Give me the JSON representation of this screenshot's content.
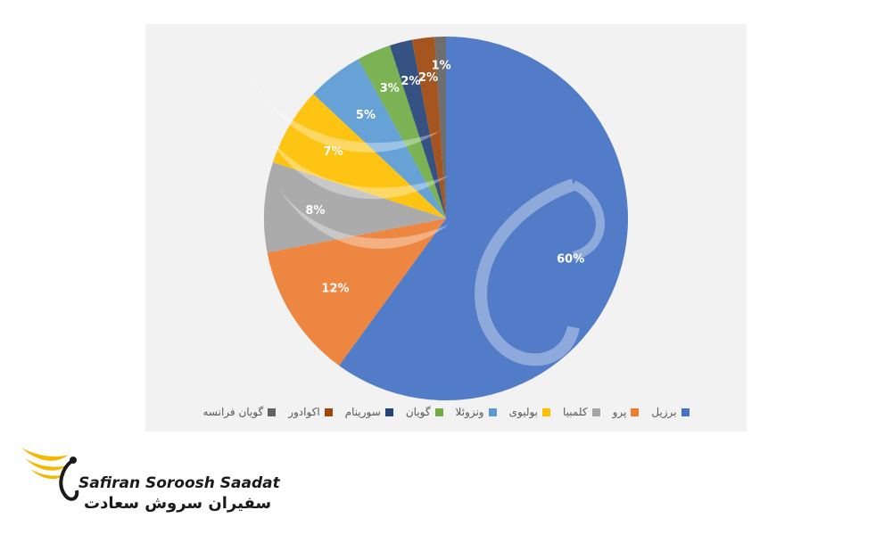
{
  "chart_data": {
    "type": "pie",
    "title": "",
    "categories": [
      "برزیل",
      "پرو",
      "کلمبیا",
      "بولیوی",
      "ونزوئلا",
      "گویان",
      "سورینام",
      "اکوادور",
      "گویان فرانسه"
    ],
    "values": [
      60,
      12,
      8,
      7,
      5,
      3,
      2,
      2,
      1
    ],
    "labels": [
      "60%",
      "12%",
      "8%",
      "7%",
      "5%",
      "3%",
      "2%",
      "2%",
      "1%"
    ],
    "colors": [
      "#4472c4",
      "#ed7d31",
      "#a5a5a5",
      "#ffc000",
      "#5b9bd5",
      "#70ad47",
      "#264478",
      "#9e480e",
      "#636363"
    ],
    "legend_position": "bottom"
  },
  "brand": {
    "name_en": "Safiran Soroosh Saadat",
    "name_fa": "سفیران سروش سعادت",
    "accent_color": "#f5b800"
  }
}
